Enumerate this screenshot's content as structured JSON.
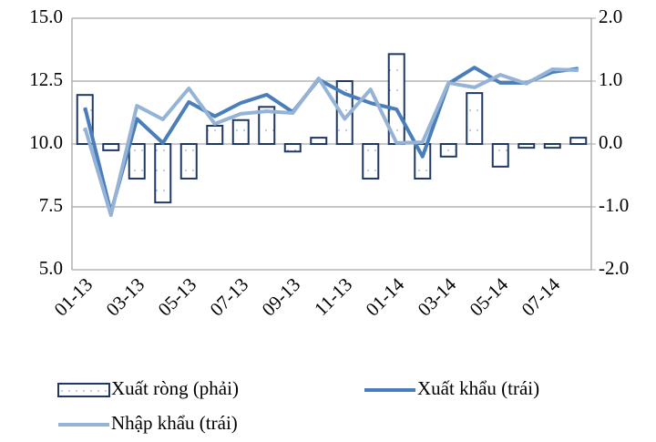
{
  "chart_data": {
    "type": "bar-line",
    "categories": [
      "01-13",
      null,
      "03-13",
      null,
      "05-13",
      null,
      "07-13",
      null,
      "09-13",
      null,
      "11-13",
      null,
      "01-14",
      null,
      "03-14",
      null,
      "05-14",
      null,
      "07-14",
      null
    ],
    "series": [
      {
        "name": "Xuất ròng (phải)",
        "type": "bar",
        "axis": "y2",
        "color": "#1f3864",
        "values": [
          0.78,
          -0.1,
          -0.55,
          -0.93,
          -0.55,
          0.29,
          0.38,
          0.59,
          -0.12,
          0.1,
          1.0,
          -0.55,
          1.43,
          -0.55,
          -0.2,
          0.81,
          -0.36,
          -0.06,
          -0.06,
          0.1
        ]
      },
      {
        "name": "Xuất khẩu (trái)",
        "type": "line",
        "color": "#4a7ebb",
        "values": [
          11.45,
          7.28,
          11.0,
          10.04,
          11.67,
          11.1,
          11.63,
          11.96,
          11.27,
          12.57,
          12.0,
          11.63,
          11.38,
          9.5,
          12.4,
          13.04,
          12.43,
          12.43,
          12.86,
          13.0
        ]
      },
      {
        "name": "Nhập khẩu (trái)",
        "type": "line",
        "color": "#95b3d7",
        "values": [
          10.65,
          7.17,
          11.52,
          10.98,
          12.21,
          10.8,
          11.2,
          11.3,
          11.23,
          12.61,
          11.0,
          12.17,
          10.04,
          10.07,
          12.43,
          12.25,
          12.75,
          12.4,
          12.97,
          12.93
        ]
      }
    ],
    "ylim": [
      5,
      15
    ],
    "yticks": [
      {
        "value": 5,
        "label": "5.0"
      },
      7.5,
      {
        "value": 10,
        "label": "10.0"
      },
      12.5,
      {
        "value": 15,
        "label": "15.0"
      }
    ],
    "y2lim": [
      -2,
      2
    ],
    "y2ticks": [
      {
        "value": -2,
        "label": "-2.0"
      },
      {
        "value": -1,
        "label": "-1.0"
      },
      {
        "value": 0,
        "label": "0.0"
      },
      {
        "value": 1,
        "label": "1.0"
      },
      {
        "value": 2,
        "label": "2.0"
      }
    ],
    "grid": true
  }
}
